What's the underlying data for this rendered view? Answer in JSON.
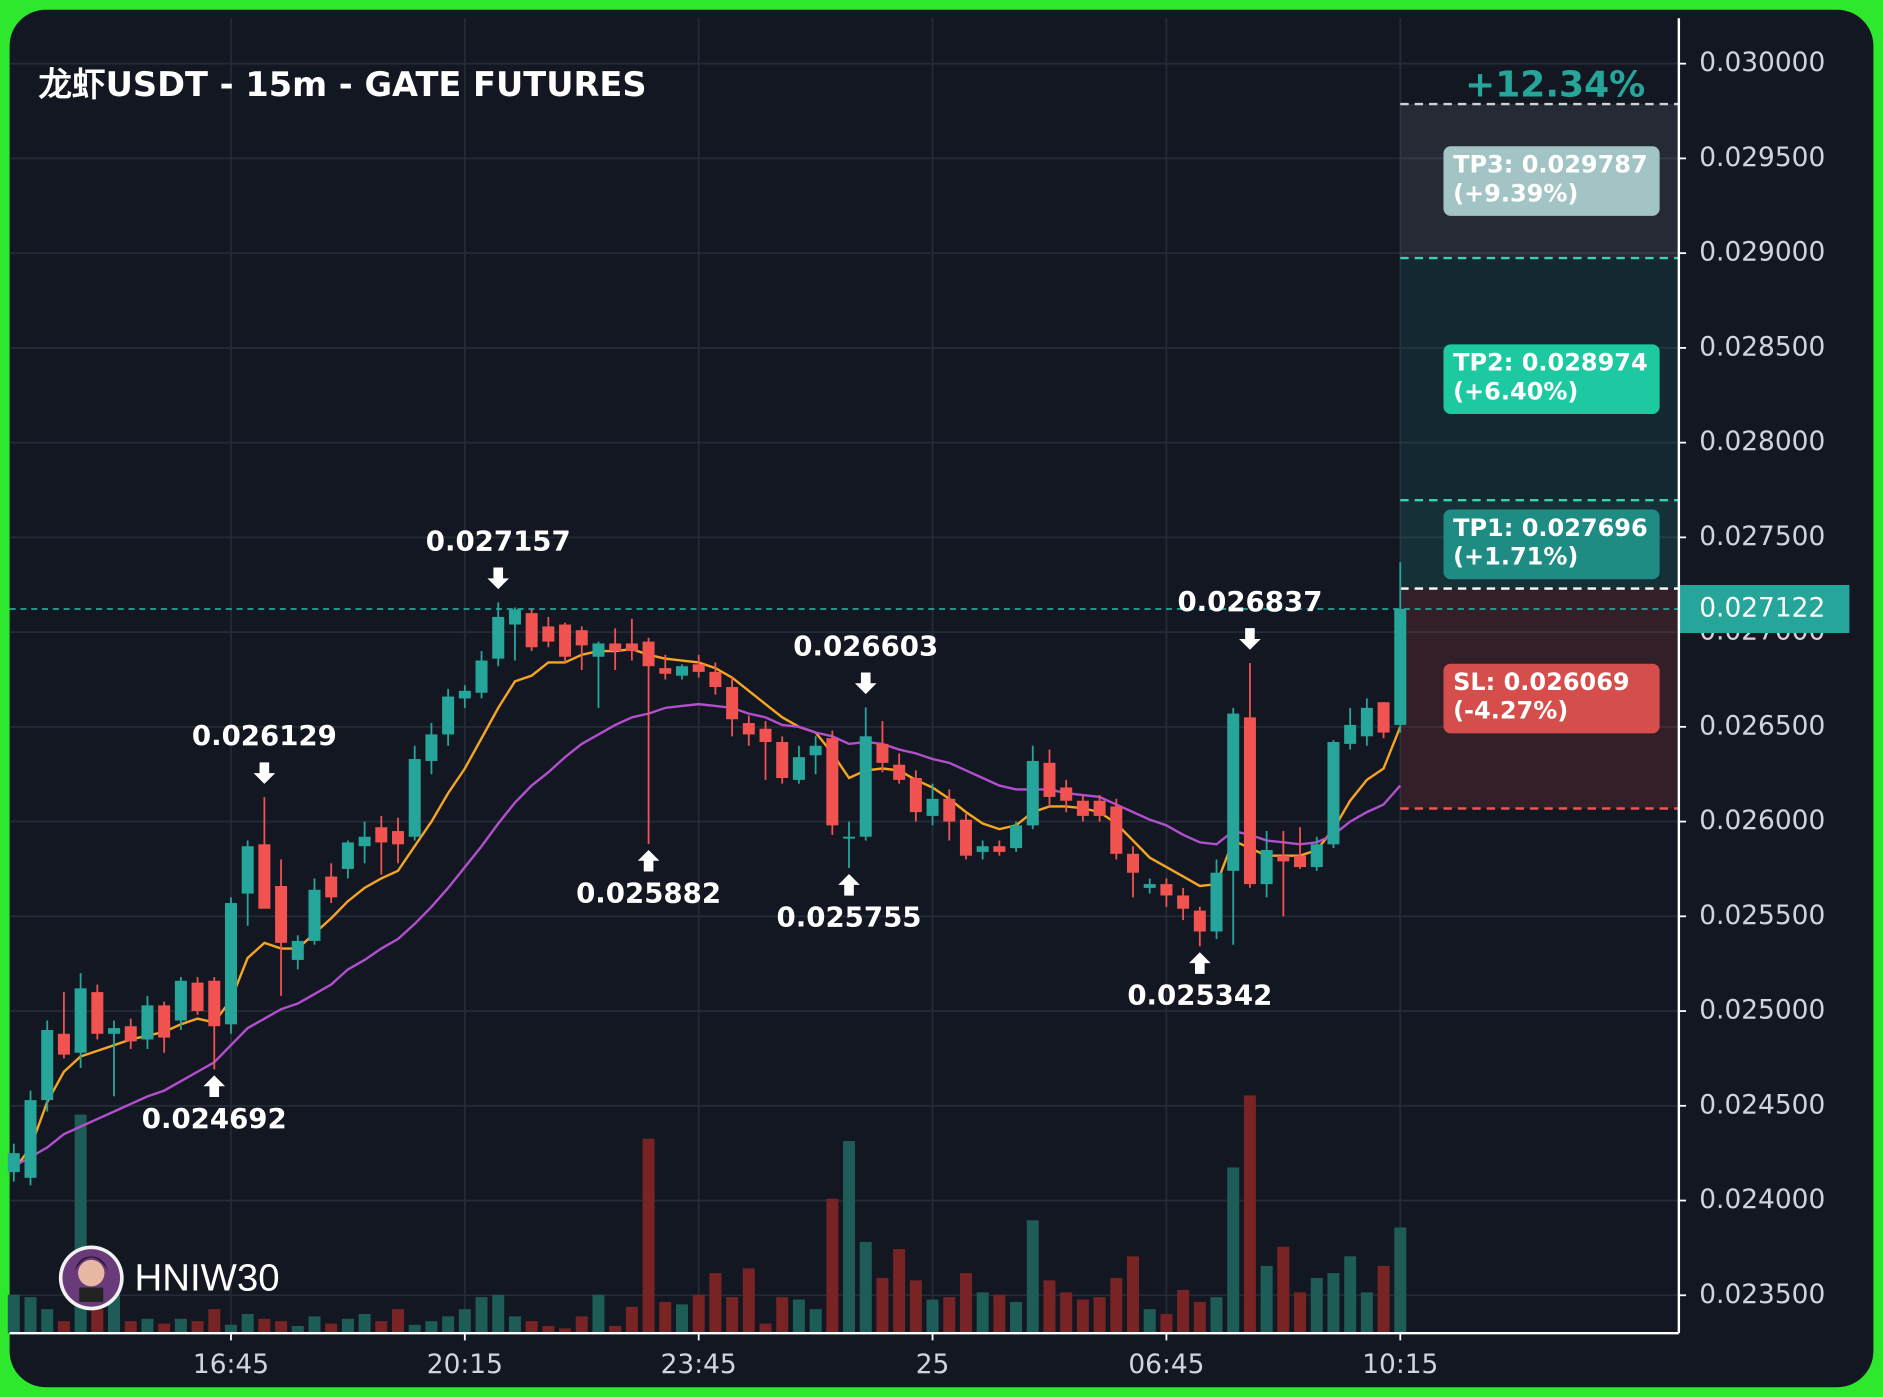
{
  "chart_data": {
    "type": "candlestick",
    "title": "龙虾USDT - 15m - GATE FUTURES",
    "watermark": "HNIW30",
    "header_change": "+12.34%",
    "categories": [
      null,
      null,
      null,
      null,
      null,
      null,
      null,
      null,
      null,
      null,
      null,
      null,
      null,
      "16:45",
      null,
      null,
      null,
      null,
      null,
      null,
      null,
      null,
      null,
      null,
      null,
      null,
      null,
      "20:15",
      null,
      null,
      null,
      null,
      null,
      null,
      null,
      null,
      null,
      null,
      null,
      null,
      null,
      "23:45",
      null,
      null,
      null,
      null,
      null,
      null,
      null,
      null,
      null,
      null,
      null,
      null,
      null,
      "25",
      null,
      null,
      null,
      null,
      null,
      null,
      null,
      null,
      null,
      null,
      null,
      null,
      null,
      "06:45",
      null,
      null,
      null,
      null,
      null,
      null,
      null,
      null,
      null,
      null,
      null,
      null,
      null,
      "10:15"
    ],
    "open": [
      0.02415,
      0.02412,
      0.02453,
      0.02488,
      0.02478,
      0.0251,
      0.02488,
      0.02492,
      0.02485,
      0.02503,
      0.02495,
      0.02515,
      0.02516,
      0.02493,
      0.02562,
      0.02588,
      0.02566,
      0.02527,
      0.02537,
      0.02571,
      0.02575,
      0.02587,
      0.02597,
      0.02595,
      0.02592,
      0.02632,
      0.02646,
      0.02665,
      0.02668,
      0.02686,
      0.02704,
      0.0271,
      0.02703,
      0.02704,
      0.02701,
      0.02687,
      0.02694,
      0.02694,
      0.02695,
      0.02681,
      0.02677,
      0.02683,
      0.02679,
      0.02671,
      0.02652,
      0.02649,
      0.02642,
      0.02622,
      0.02635,
      0.02644,
      0.02591,
      0.02592,
      0.02641,
      0.0263,
      0.02623,
      0.02603,
      0.02612,
      0.02601,
      0.02584,
      0.02587,
      0.02586,
      0.02598,
      0.02631,
      0.02618,
      0.02611,
      0.02611,
      0.02608,
      0.02583,
      0.02565,
      0.02567,
      0.02561,
      0.02553,
      0.02542,
      0.02574,
      0.02655,
      0.02567,
      0.02582,
      0.02582,
      0.02576,
      0.02588,
      0.02641,
      0.02645,
      0.02663,
      0.02651
    ],
    "high": [
      0.0243,
      0.02458,
      0.02495,
      0.0251,
      0.0252,
      0.02514,
      0.02495,
      0.02496,
      0.02508,
      0.02505,
      0.02518,
      0.02518,
      0.02518,
      0.0256,
      0.0259,
      0.026129,
      0.0258,
      0.0254,
      0.0257,
      0.02578,
      0.0259,
      0.026,
      0.02603,
      0.02602,
      0.0264,
      0.02652,
      0.0267,
      0.02672,
      0.0269,
      0.027157,
      0.02713,
      0.02712,
      0.02708,
      0.02705,
      0.02703,
      0.02695,
      0.02702,
      0.02707,
      0.02697,
      0.02688,
      0.02683,
      0.02688,
      0.02684,
      0.02676,
      0.02656,
      0.02653,
      0.02645,
      0.0264,
      0.02645,
      0.02648,
      0.026,
      0.026603,
      0.02653,
      0.02636,
      0.02627,
      0.0262,
      0.02617,
      0.02604,
      0.0259,
      0.0259,
      0.026,
      0.0264,
      0.02638,
      0.02622,
      0.02614,
      0.02614,
      0.02612,
      0.02587,
      0.0257,
      0.0257,
      0.02565,
      0.02555,
      0.0258,
      0.0266,
      0.026837,
      0.02595,
      0.02595,
      0.02597,
      0.02592,
      0.02643,
      0.0266,
      0.02665,
      0.02663,
      0.02737
    ],
    "low": [
      0.0241,
      0.02408,
      0.02447,
      0.02475,
      0.0247,
      0.02485,
      0.02455,
      0.0248,
      0.0248,
      0.02478,
      0.0249,
      0.02498,
      0.024692,
      0.02488,
      0.02545,
      0.02555,
      0.02508,
      0.02522,
      0.02535,
      0.02557,
      0.0257,
      0.02578,
      0.02572,
      0.02578,
      0.0259,
      0.02625,
      0.0264,
      0.0266,
      0.02665,
      0.02682,
      0.02685,
      0.0269,
      0.02692,
      0.02684,
      0.0268,
      0.0266,
      0.0268,
      0.02685,
      0.025882,
      0.02675,
      0.02675,
      0.02676,
      0.02667,
      0.02645,
      0.0264,
      0.02622,
      0.0262,
      0.0262,
      0.02625,
      0.02593,
      0.025755,
      0.0259,
      0.02626,
      0.0262,
      0.026,
      0.02598,
      0.0259,
      0.0258,
      0.0258,
      0.02582,
      0.02584,
      0.02596,
      0.02608,
      0.02605,
      0.026,
      0.026,
      0.0258,
      0.0256,
      0.02562,
      0.02555,
      0.02548,
      0.025342,
      0.02538,
      0.02535,
      0.02565,
      0.0256,
      0.0255,
      0.02575,
      0.02574,
      0.02586,
      0.02638,
      0.0264,
      0.02644,
      0.02647
    ],
    "close": [
      0.02425,
      0.02453,
      0.0249,
      0.02477,
      0.02512,
      0.02488,
      0.02491,
      0.02484,
      0.02503,
      0.02486,
      0.02516,
      0.025,
      0.02492,
      0.02557,
      0.02587,
      0.02554,
      0.02536,
      0.02537,
      0.02564,
      0.0256,
      0.02589,
      0.02592,
      0.02589,
      0.02588,
      0.02633,
      0.02646,
      0.02666,
      0.02669,
      0.02685,
      0.02708,
      0.02712,
      0.02692,
      0.02695,
      0.02687,
      0.02693,
      0.02694,
      0.0269,
      0.0269,
      0.02682,
      0.02678,
      0.02682,
      0.02679,
      0.02671,
      0.02654,
      0.02646,
      0.02642,
      0.02623,
      0.02634,
      0.0264,
      0.02598,
      0.02592,
      0.02645,
      0.02631,
      0.02622,
      0.02605,
      0.02612,
      0.026,
      0.02582,
      0.02587,
      0.02584,
      0.02598,
      0.02632,
      0.02613,
      0.02611,
      0.02603,
      0.02603,
      0.02583,
      0.02573,
      0.02567,
      0.02561,
      0.02554,
      0.02542,
      0.02573,
      0.02657,
      0.02567,
      0.02585,
      0.02579,
      0.02576,
      0.02588,
      0.02642,
      0.02651,
      0.0266,
      0.02647,
      0.027122
    ],
    "volume": [
      64,
      60,
      40,
      20,
      364,
      40,
      64,
      20,
      24,
      16,
      24,
      20,
      40,
      14,
      32,
      24,
      20,
      12,
      28,
      16,
      24,
      32,
      20,
      40,
      14,
      20,
      28,
      40,
      60,
      64,
      28,
      20,
      12,
      8,
      28,
      64,
      12,
      44,
      324,
      52,
      48,
      64,
      100,
      60,
      108,
      16,
      60,
      56,
      40,
      224,
      320,
      152,
      92,
      140,
      88,
      56,
      60,
      100,
      68,
      64,
      52,
      188,
      88,
      68,
      56,
      60,
      92,
      128,
      40,
      32,
      72,
      52,
      60,
      276,
      396,
      112,
      144,
      68,
      92,
      100,
      128,
      68,
      112,
      176
    ],
    "volume_ylim": [
      0,
      500
    ],
    "ma_lines": [
      {
        "color": "#f5a524",
        "values": [
          0.02416,
          0.02428,
          0.02452,
          0.02468,
          0.02476,
          0.02479,
          0.02482,
          0.02485,
          0.02487,
          0.02489,
          0.02493,
          0.02496,
          0.02494,
          0.02506,
          0.02528,
          0.02536,
          0.02533,
          0.02533,
          0.02541,
          0.02549,
          0.02558,
          0.02565,
          0.0257,
          0.02574,
          0.02587,
          0.026,
          0.02615,
          0.02628,
          0.02644,
          0.0266,
          0.02674,
          0.02677,
          0.02684,
          0.02684,
          0.02688,
          0.0269,
          0.0269,
          0.02691,
          0.02688,
          0.02686,
          0.02685,
          0.02684,
          0.02681,
          0.02676,
          0.02669,
          0.02662,
          0.02655,
          0.0265,
          0.02647,
          0.02636,
          0.02623,
          0.02627,
          0.02628,
          0.02627,
          0.02622,
          0.02618,
          0.02612,
          0.02605,
          0.02599,
          0.02596,
          0.02598,
          0.02605,
          0.02608,
          0.02608,
          0.02607,
          0.02605,
          0.02599,
          0.0259,
          0.02581,
          0.02576,
          0.02571,
          0.02566,
          0.02567,
          0.0259,
          0.02586,
          0.02582,
          0.02582,
          0.02582,
          0.02585,
          0.02596,
          0.02611,
          0.02622,
          0.02628,
          0.0265
        ]
      },
      {
        "color": "#b24fcf",
        "values": [
          0.02418,
          0.02423,
          0.02428,
          0.02435,
          0.02439,
          0.02443,
          0.02447,
          0.02451,
          0.02455,
          0.02458,
          0.02463,
          0.02468,
          0.02473,
          0.02482,
          0.02491,
          0.02496,
          0.02501,
          0.02504,
          0.02509,
          0.02514,
          0.02522,
          0.02527,
          0.02533,
          0.02538,
          0.02546,
          0.02555,
          0.02565,
          0.02576,
          0.02587,
          0.02599,
          0.0261,
          0.02619,
          0.02626,
          0.02634,
          0.02641,
          0.02646,
          0.02651,
          0.02655,
          0.02657,
          0.0266,
          0.02661,
          0.02662,
          0.02661,
          0.0266,
          0.02657,
          0.02655,
          0.02651,
          0.0265,
          0.02647,
          0.02645,
          0.02641,
          0.02642,
          0.02641,
          0.02638,
          0.02636,
          0.02633,
          0.02631,
          0.02627,
          0.02623,
          0.02619,
          0.02617,
          0.02617,
          0.02617,
          0.02615,
          0.02614,
          0.02613,
          0.02609,
          0.02605,
          0.02601,
          0.02598,
          0.02593,
          0.02589,
          0.02588,
          0.02595,
          0.02593,
          0.0259,
          0.02589,
          0.02588,
          0.02589,
          0.02593,
          0.026,
          0.02605,
          0.02609,
          0.02619
        ]
      }
    ],
    "pivot_highs": [
      15,
      29,
      51,
      74
    ],
    "pivot_lows": [
      12,
      38,
      50,
      71
    ],
    "up_color": "#26a69a",
    "down_color": "#f05350",
    "volume_up_color": "#1e5c57",
    "volume_down_color": "#782424",
    "last_price_color": "#26a69a",
    "entry": 0.02723,
    "levels": [
      {
        "label": "TP3: 0.029787",
        "change": "(+9.39%)",
        "value": 0.029787,
        "color": "#a3c4c4",
        "line_color": "#c8d6d6",
        "zone": "rgba(200,215,230,0.10)"
      },
      {
        "label": "TP2: 0.028974",
        "change": "(+6.40%)",
        "value": 0.028974,
        "color": "#1cc9a0",
        "line_color": "#3ccfb4",
        "zone": "rgba(30,150,140,0.14)"
      },
      {
        "label": "TP1: 0.027696",
        "change": "(+1.71%)",
        "value": 0.027696,
        "color": "#1f8c84",
        "line_color": "#3ccfb4",
        "zone": "rgba(30,150,140,0.20)"
      },
      {
        "label": "SL: 0.026069",
        "change": "(-4.27%)",
        "value": 0.026069,
        "color": "#d54e4b",
        "line_color": "#f05350",
        "zone": "rgba(210,70,70,0.17)"
      }
    ],
    "ylim": [
      0.0233,
      0.03024
    ],
    "yticks": [
      {
        "value": 0.0235,
        "label": "0.023500"
      },
      {
        "value": 0.024,
        "label": "0.024000"
      },
      {
        "value": 0.0245,
        "label": "0.024500"
      },
      {
        "value": 0.025,
        "label": "0.025000"
      },
      {
        "value": 0.0255,
        "label": "0.025500"
      },
      {
        "value": 0.026,
        "label": "0.026000"
      },
      {
        "value": 0.0265,
        "label": "0.026500"
      },
      {
        "value": 0.027,
        "label": "0.027000"
      },
      {
        "value": 0.0275,
        "label": "0.027500"
      },
      {
        "value": 0.028,
        "label": "0.028000"
      },
      {
        "value": 0.0285,
        "label": "0.028500"
      },
      {
        "value": 0.029,
        "label": "0.029000"
      },
      {
        "value": 0.0295,
        "label": "0.029500"
      },
      {
        "value": 0.03,
        "label": "0.030000"
      }
    ],
    "grid": true
  }
}
